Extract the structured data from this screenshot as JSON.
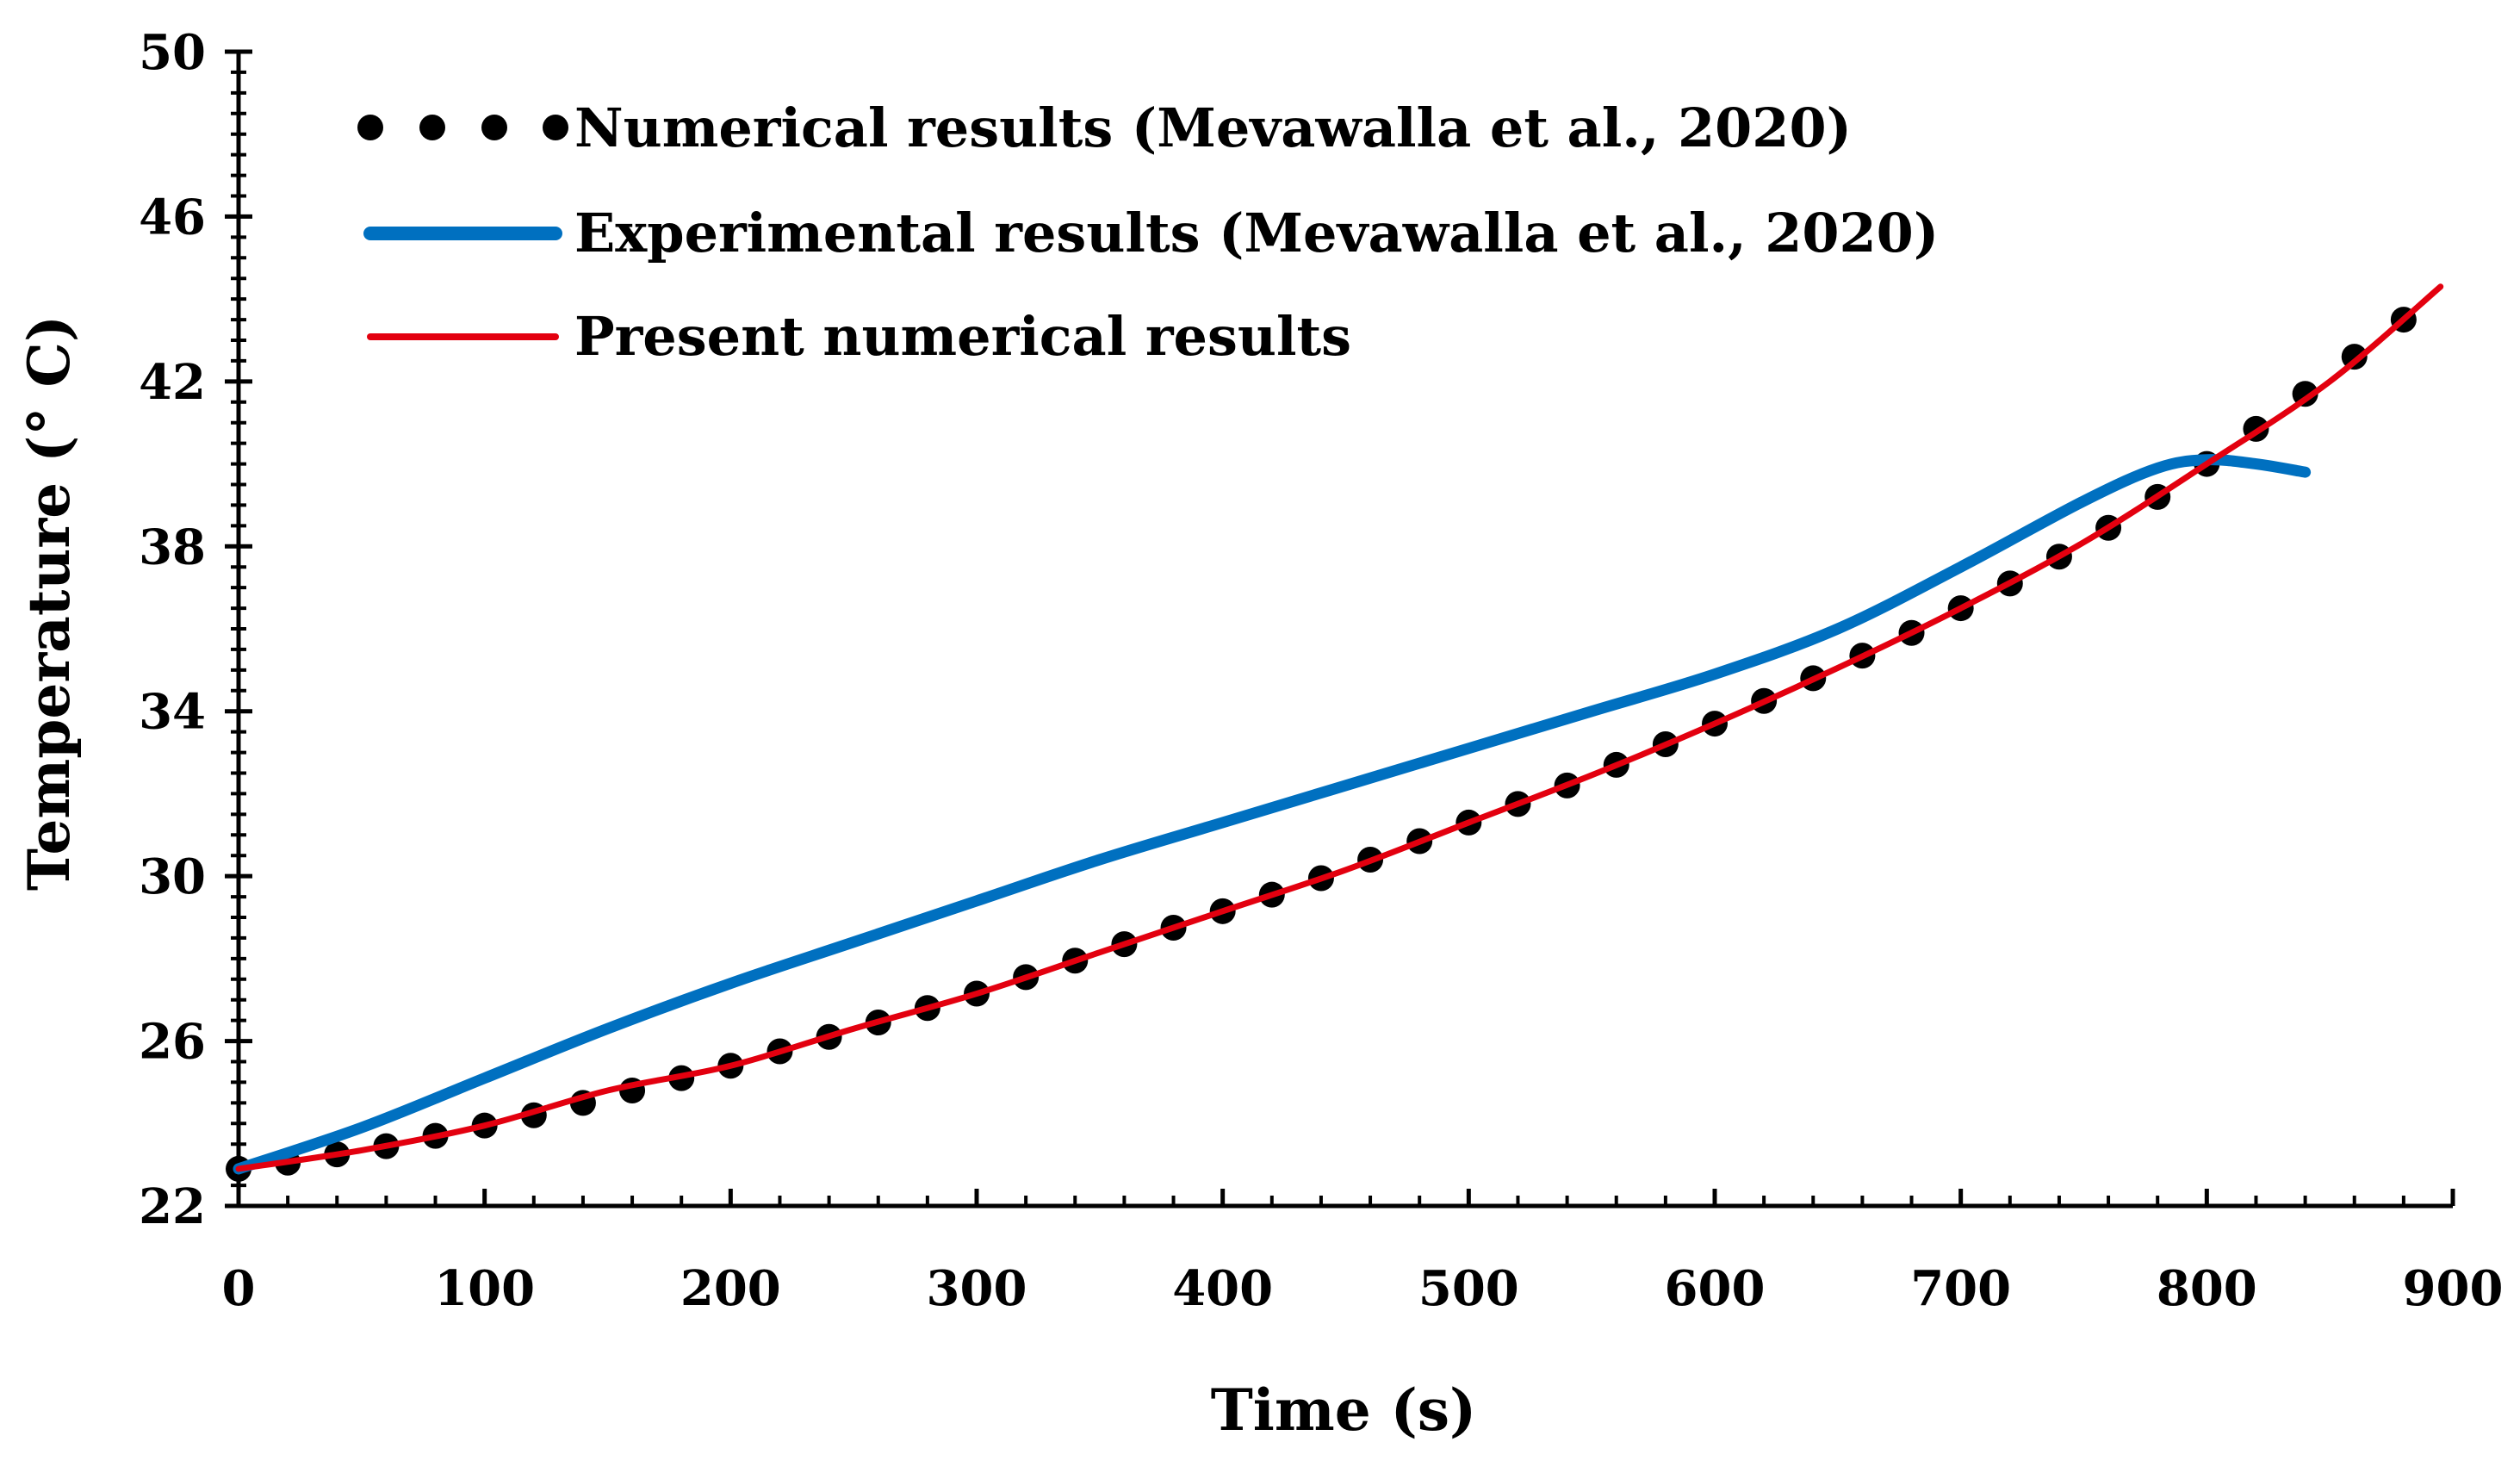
{
  "chart_data": {
    "type": "line",
    "title": "",
    "xlabel": "Time (s)",
    "ylabel": "Temperature (° C)",
    "xlim": [
      0,
      900
    ],
    "ylim": [
      22,
      50
    ],
    "x_ticks": [
      0,
      100,
      200,
      300,
      400,
      500,
      600,
      700,
      800,
      900
    ],
    "y_ticks": [
      22,
      26,
      30,
      34,
      38,
      42,
      46,
      50
    ],
    "x_tick_labels": [
      "0",
      "100",
      "200",
      "300",
      "400",
      "500",
      "600",
      "700",
      "800",
      "900"
    ],
    "y_tick_labels": [
      "22",
      "26",
      "30",
      "34",
      "38",
      "42",
      "46",
      "50"
    ],
    "grid": false,
    "legend_position": "top-left",
    "series": [
      {
        "name": "Numerical results (Mevawalla et al., 2020)",
        "style": "dots",
        "color": "#000000",
        "x": [
          0,
          20,
          40,
          60,
          80,
          100,
          120,
          140,
          160,
          180,
          200,
          220,
          240,
          260,
          280,
          300,
          320,
          340,
          360,
          380,
          400,
          420,
          440,
          460,
          480,
          500,
          520,
          540,
          560,
          580,
          600,
          620,
          640,
          660,
          680,
          700,
          720,
          740,
          760,
          780,
          800,
          820,
          840,
          860,
          880
        ],
        "y": [
          22.9,
          23.05,
          23.25,
          23.45,
          23.7,
          23.95,
          24.2,
          24.5,
          24.8,
          25.1,
          25.4,
          25.75,
          26.1,
          26.45,
          26.8,
          27.15,
          27.55,
          27.95,
          28.35,
          28.75,
          29.15,
          29.55,
          29.95,
          30.4,
          30.85,
          31.3,
          31.75,
          32.2,
          32.7,
          33.2,
          33.7,
          34.25,
          34.8,
          35.35,
          35.9,
          36.5,
          37.1,
          37.75,
          38.45,
          39.2,
          40.0,
          40.85,
          41.7,
          42.6,
          43.5
        ]
      },
      {
        "name": "Experimental results (Mevawalla et al., 2020)",
        "style": "line",
        "color": "#0070c0",
        "x": [
          0,
          50,
          100,
          150,
          200,
          250,
          300,
          350,
          400,
          450,
          500,
          550,
          600,
          650,
          700,
          750,
          780,
          800,
          820,
          840
        ],
        "y": [
          22.9,
          23.9,
          25.1,
          26.3,
          27.4,
          28.4,
          29.4,
          30.4,
          31.3,
          32.2,
          33.1,
          34.0,
          34.9,
          36.0,
          37.5,
          39.1,
          39.9,
          40.1,
          40.0,
          39.8
        ]
      },
      {
        "name": "Present numerical  results",
        "style": "line",
        "color": "#e3000f",
        "x": [
          0,
          50,
          100,
          150,
          200,
          250,
          300,
          350,
          400,
          450,
          500,
          550,
          600,
          650,
          700,
          750,
          800,
          850,
          895
        ],
        "y": [
          22.9,
          23.35,
          23.95,
          24.8,
          25.4,
          26.3,
          27.15,
          28.15,
          29.15,
          30.15,
          31.3,
          32.45,
          33.7,
          35.05,
          36.5,
          38.1,
          40.0,
          42.0,
          44.3
        ]
      }
    ]
  }
}
